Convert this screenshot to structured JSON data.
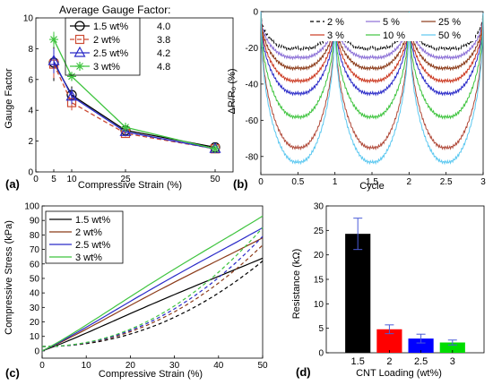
{
  "chart_data": [
    {
      "id": "a",
      "type": "line",
      "panel_label": "(a)",
      "xlabel": "Compressive Strain (%)",
      "ylabel": "Gauge Factor",
      "xlim": [
        0,
        55
      ],
      "ylim": [
        0,
        10
      ],
      "xticks": [
        0,
        5,
        10,
        25,
        50
      ],
      "yticks": [
        0,
        2,
        4,
        6,
        8,
        10
      ],
      "legend_title": "Average Gauge Factor:",
      "legend_position": "top-right",
      "series": [
        {
          "name": "1.5 wt%",
          "avg": "4.0",
          "color": "#000000",
          "dash": "",
          "marker": "circle",
          "x": [
            5,
            10,
            25,
            50
          ],
          "y": [
            7.1,
            5.0,
            2.7,
            1.6
          ],
          "err": [
            1.2,
            0.55,
            0.25,
            0.2
          ]
        },
        {
          "name": "2 wt%",
          "avg": "3.8",
          "color": "#cc4a33",
          "dash": "5,3",
          "marker": "square",
          "x": [
            5,
            10,
            25,
            50
          ],
          "y": [
            7.0,
            4.5,
            2.5,
            1.5
          ],
          "err": [
            0.9,
            0.5,
            0.2,
            0.2
          ]
        },
        {
          "name": "2.5 wt%",
          "avg": "4.2",
          "color": "#2a2ac8",
          "dash": "",
          "marker": "triangle",
          "x": [
            5,
            10,
            25,
            50
          ],
          "y": [
            7.2,
            4.9,
            2.6,
            1.5
          ],
          "err": [
            0.8,
            0.5,
            0.2,
            0.2
          ]
        },
        {
          "name": "3 wt%",
          "avg": "4.8",
          "color": "#3fc43f",
          "dash": "",
          "marker": "star",
          "x": [
            5,
            10,
            25,
            50
          ],
          "y": [
            8.6,
            6.2,
            2.9,
            1.5
          ],
          "err": [
            0.5,
            0.3,
            0.2,
            0.15
          ]
        }
      ]
    },
    {
      "id": "b",
      "type": "line",
      "panel_label": "(b)",
      "xlabel": "Cycle",
      "ylabel": "ΔR/R₀ (%)",
      "xlim": [
        0,
        3
      ],
      "ylim": [
        -90,
        0
      ],
      "xticks": [
        0,
        0.5,
        1,
        1.5,
        2,
        2.5,
        3
      ],
      "yticks": [
        -80,
        -60,
        -40,
        -20,
        0
      ],
      "legend_position": "top",
      "series": [
        {
          "name": "2 %",
          "color": "#000000",
          "dash": "4,3",
          "min": -25
        },
        {
          "name": "5 %",
          "color": "#8b6fd6",
          "dash": "",
          "min": -30
        },
        {
          "name": "25 %",
          "color": "#8b3a18",
          "dash": "",
          "min": -36
        },
        {
          "name": "3 %",
          "color": "#cc3a22",
          "dash": "",
          "min": -43
        },
        {
          "name": "10 %",
          "color": "#3fc43f",
          "dash": "",
          "min": -63
        },
        {
          "name": "50 %",
          "color": "#5cc8f0",
          "dash": "",
          "min": -88
        }
      ],
      "extra_series": [
        {
          "color": "#2a2ac8",
          "dash": "",
          "min": -50
        },
        {
          "color": "#b04a3a",
          "dash": "",
          "min": -80
        }
      ]
    },
    {
      "id": "c",
      "type": "line",
      "panel_label": "(c)",
      "xlabel": "Compressive Strain (%)",
      "ylabel": "Compressive Stress (kPa)",
      "xlim": [
        0,
        50
      ],
      "ylim": [
        -5,
        100
      ],
      "xticks": [
        0,
        10,
        20,
        30,
        40,
        50
      ],
      "yticks": [
        0,
        10,
        20,
        30,
        40,
        50,
        60,
        70,
        80,
        90,
        100
      ],
      "legend_position": "top-left",
      "series": [
        {
          "name": "1.5 wt%",
          "color": "#000000",
          "load_max": 64,
          "unload_end": 59
        },
        {
          "name": "2 wt%",
          "color": "#8b3a18",
          "load_max": 78,
          "unload_end": 70
        },
        {
          "name": "2.5 wt%",
          "color": "#2a2ac8",
          "load_max": 85,
          "unload_end": 76
        },
        {
          "name": "3 wt%",
          "color": "#3fc43f",
          "load_max": 93,
          "unload_end": 82
        }
      ]
    },
    {
      "id": "d",
      "type": "bar",
      "panel_label": "(d)",
      "xlabel": "CNT Loading (wt%)",
      "ylabel": "Resistance (kΩ)",
      "ylim": [
        0,
        30
      ],
      "yticks": [
        0,
        5,
        10,
        15,
        20,
        25,
        30
      ],
      "categories": [
        "1.5",
        "2",
        "2.5",
        "3"
      ],
      "values": [
        24.3,
        4.8,
        2.9,
        2.1
      ],
      "errors": [
        3.2,
        0.9,
        0.9,
        0.5
      ],
      "colors": [
        "#000000",
        "#ff0000",
        "#0000ff",
        "#00dd00"
      ]
    }
  ]
}
